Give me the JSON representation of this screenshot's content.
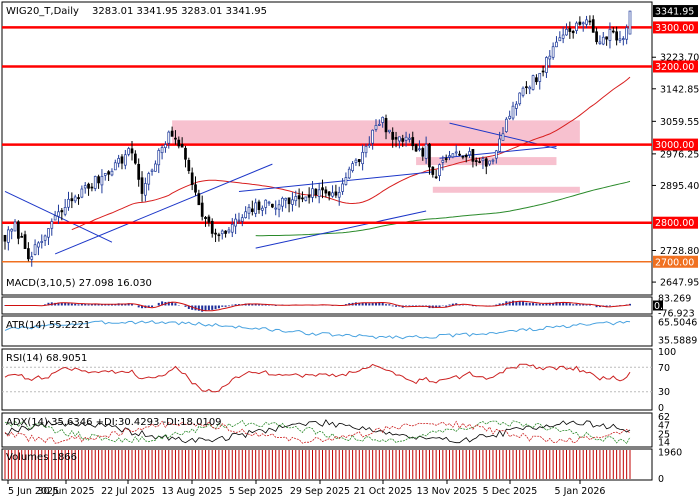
{
  "header": {
    "symbol_timeframe": "WIG20_T,Daily",
    "ohlc": "3283.01 3341.95 3283.01 3341.95"
  },
  "colors": {
    "bull": "#1f3a9a",
    "bear": "#000000",
    "levels": "#ff0000",
    "zone": "#f7c1cf",
    "ma_red": "#d81e1e",
    "ma_green": "#2a8a2a",
    "trendline": "#1c36c8",
    "macd_hist": "#1f2f9a",
    "atr": "#4aa3e0",
    "rsi": "#cc2222",
    "volume": "#c00000"
  },
  "chart_data": [
    {
      "type": "candlestick",
      "panel": "price",
      "ylim": [
        2620,
        3360
      ],
      "y_ticks": [
        "3341.95",
        "3300.00",
        "3223.70",
        "3200.00",
        "3142.85",
        "3059.55",
        "3000.00",
        "2976.25",
        "2895.40",
        "2800.00",
        "2728.80",
        "2700.00",
        "2647.95"
      ],
      "x_ticks": [
        "5 Jun 2025",
        "30 Jun 2025",
        "22 Jul 2025",
        "13 Aug 2025",
        "5 Sep 2025",
        "29 Sep 2025",
        "21 Oct 2025",
        "13 Nov 2025",
        "5 Dec 2025",
        "5 Jan 2026"
      ],
      "close_anchors": [
        [
          0,
          2760
        ],
        [
          3,
          2790
        ],
        [
          7,
          2720
        ],
        [
          10,
          2735
        ],
        [
          14,
          2800
        ],
        [
          20,
          2860
        ],
        [
          27,
          2905
        ],
        [
          33,
          2950
        ],
        [
          38,
          2985
        ],
        [
          41,
          2880
        ],
        [
          45,
          2960
        ],
        [
          49,
          3018
        ],
        [
          51,
          3025
        ],
        [
          54,
          2960
        ],
        [
          57,
          2880
        ],
        [
          60,
          2805
        ],
        [
          64,
          2760
        ],
        [
          69,
          2800
        ],
        [
          75,
          2840
        ],
        [
          81,
          2850
        ],
        [
          87,
          2860
        ],
        [
          93,
          2880
        ],
        [
          99,
          2875
        ],
        [
          103,
          2930
        ],
        [
          107,
          2975
        ],
        [
          110,
          3030
        ],
        [
          113,
          3060
        ],
        [
          117,
          3000
        ],
        [
          120,
          3025
        ],
        [
          123,
          2970
        ],
        [
          126,
          2990
        ],
        [
          128,
          2910
        ],
        [
          131,
          2950
        ],
        [
          135,
          2990
        ],
        [
          139,
          2975
        ],
        [
          143,
          2950
        ],
        [
          146,
          2960
        ],
        [
          149,
          3040
        ],
        [
          152,
          3100
        ],
        [
          156,
          3150
        ],
        [
          160,
          3180
        ],
        [
          163,
          3230
        ],
        [
          166,
          3280
        ],
        [
          170,
          3300
        ],
        [
          175,
          3315
        ],
        [
          178,
          3250
        ],
        [
          181,
          3300
        ],
        [
          185,
          3260
        ],
        [
          187,
          3341.95
        ]
      ],
      "horizontal_levels": [
        {
          "value": 3300.0,
          "label": "3300.00"
        },
        {
          "value": 3200.0,
          "label": "3200.00"
        },
        {
          "value": 3000.0,
          "label": "3000.00"
        },
        {
          "value": 2800.0,
          "label": "2800.00"
        },
        {
          "value": 2700.0,
          "label": "2700.00"
        }
      ],
      "last_price": "3341.95"
    },
    {
      "type": "bar",
      "panel": "macd",
      "label": "MACD(3,10,5) 27.098 16.030",
      "ylim": [
        -95,
        95
      ],
      "y_ticks": [
        "83.269",
        "0.00",
        "-76.923"
      ]
    },
    {
      "type": "line",
      "panel": "atr",
      "label": "ATR(14) 55.2221",
      "y_ticks": [
        "65.5046",
        "35.5889"
      ]
    },
    {
      "type": "line",
      "panel": "rsi",
      "label": "RSI(14) 68.9051",
      "y_ticks": [
        "100",
        "70",
        "30",
        "0"
      ]
    },
    {
      "type": "line",
      "panel": "adx",
      "label": "ADX(14) 35.6346 +DI:30.4293 -DI:18.0109",
      "y_ticks": [
        "62",
        "47",
        "25",
        "14"
      ]
    },
    {
      "type": "bar",
      "panel": "volume",
      "label": "Volumes 1866",
      "y_ticks": [
        "1960",
        "0"
      ]
    }
  ]
}
